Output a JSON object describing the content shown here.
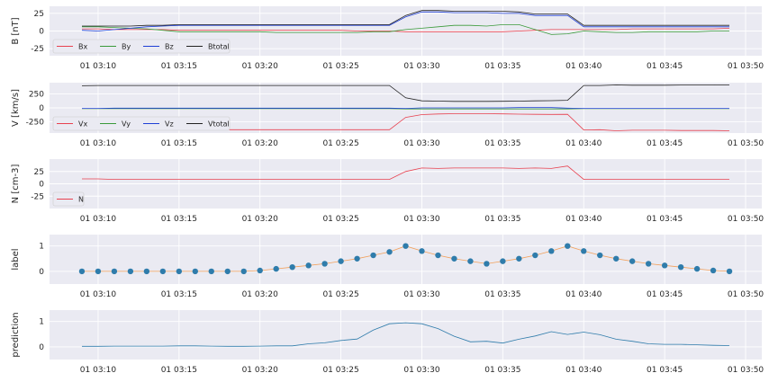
{
  "chart_data": [
    {
      "type": "line",
      "ylabel": "B [nT]",
      "ylim": [
        -35,
        35
      ],
      "yticks": [
        -25,
        0,
        25
      ],
      "grid": true,
      "legend_placement": "lower-left",
      "x": [
        "03:09",
        "03:10",
        "03:11",
        "03:12",
        "03:13",
        "03:14",
        "03:15",
        "03:16",
        "03:17",
        "03:18",
        "03:19",
        "03:20",
        "03:21",
        "03:22",
        "03:23",
        "03:24",
        "03:25",
        "03:26",
        "03:27",
        "03:28",
        "03:29",
        "03:30",
        "03:31",
        "03:32",
        "03:33",
        "03:34",
        "03:35",
        "03:36",
        "03:37",
        "03:38",
        "03:39",
        "03:40",
        "03:41",
        "03:42",
        "03:43",
        "03:44",
        "03:45",
        "03:46",
        "03:47",
        "03:48",
        "03:49"
      ],
      "series": [
        {
          "name": "Bx",
          "color": "#e8414f",
          "values": [
            3,
            3,
            2,
            2,
            2,
            2,
            1,
            1,
            1,
            1,
            1,
            1,
            1,
            1,
            1,
            1,
            1,
            0,
            0,
            0,
            -1,
            -1,
            -1,
            -1,
            -1,
            -1,
            -1,
            0,
            1,
            2,
            2,
            2,
            2,
            2,
            3,
            3,
            3,
            3,
            3,
            3,
            4
          ]
        },
        {
          "name": "By",
          "color": "#3a9a3a",
          "values": [
            6,
            6,
            5,
            4,
            3,
            1,
            -1,
            -1,
            -1,
            -1,
            -1,
            -1,
            -2,
            -2,
            -2,
            -2,
            -2,
            -2,
            -1,
            -1,
            2,
            4,
            6,
            8,
            8,
            7,
            9,
            9,
            2,
            -5,
            -4,
            0,
            -1,
            -2,
            -2,
            -1,
            -1,
            -1,
            -1,
            0,
            0
          ]
        },
        {
          "name": "Bz",
          "color": "#1f3fd6",
          "values": [
            1,
            0,
            2,
            4,
            6,
            7,
            8,
            8,
            8,
            8,
            8,
            8,
            8,
            8,
            8,
            8,
            8,
            8,
            8,
            8,
            20,
            27,
            27,
            26,
            26,
            26,
            25,
            25,
            22,
            22,
            22,
            6,
            6,
            6,
            6,
            6,
            6,
            6,
            6,
            6,
            6
          ]
        },
        {
          "name": "Btotal",
          "color": "#222222",
          "values": [
            7,
            7,
            7,
            7,
            8,
            8,
            9,
            9,
            9,
            9,
            9,
            9,
            9,
            9,
            9,
            9,
            9,
            9,
            9,
            9,
            22,
            29,
            29,
            28,
            28,
            28,
            28,
            27,
            24,
            24,
            24,
            8,
            8,
            8,
            8,
            8,
            8,
            8,
            8,
            8,
            8
          ]
        }
      ]
    },
    {
      "type": "line",
      "ylabel": "V [km/s]",
      "ylim": [
        -450,
        450
      ],
      "yticks": [
        -250,
        0,
        250
      ],
      "grid": true,
      "legend_placement": "lower-left",
      "x": [
        "03:09",
        "03:10",
        "03:11",
        "03:12",
        "03:13",
        "03:14",
        "03:15",
        "03:16",
        "03:17",
        "03:18",
        "03:19",
        "03:20",
        "03:21",
        "03:22",
        "03:23",
        "03:24",
        "03:25",
        "03:26",
        "03:27",
        "03:28",
        "03:29",
        "03:30",
        "03:31",
        "03:32",
        "03:33",
        "03:34",
        "03:35",
        "03:36",
        "03:37",
        "03:38",
        "03:39",
        "03:40",
        "03:41",
        "03:42",
        "03:43",
        "03:44",
        "03:45",
        "03:46",
        "03:47",
        "03:48",
        "03:49"
      ],
      "series": [
        {
          "name": "Vx",
          "color": "#e8414f",
          "values": [
            -395,
            -390,
            -390,
            -390,
            -390,
            -390,
            -390,
            -390,
            -390,
            -390,
            -390,
            -390,
            -390,
            -390,
            -390,
            -390,
            -390,
            -390,
            -390,
            -390,
            -170,
            -120,
            -110,
            -105,
            -105,
            -105,
            -108,
            -112,
            -115,
            -118,
            -115,
            -395,
            -390,
            -410,
            -400,
            -400,
            -400,
            -405,
            -405,
            -405,
            -410
          ]
        },
        {
          "name": "Vy",
          "color": "#3a9a3a",
          "values": [
            -15,
            -15,
            -15,
            -15,
            -15,
            -15,
            -15,
            -15,
            -15,
            -15,
            -15,
            -15,
            -15,
            -15,
            -15,
            -15,
            -15,
            -15,
            -15,
            -15,
            -20,
            -20,
            -20,
            -20,
            -20,
            -20,
            -20,
            -20,
            -20,
            -20,
            -20,
            -15,
            -15,
            -15,
            -15,
            -15,
            -15,
            -15,
            -15,
            -15,
            -15
          ]
        },
        {
          "name": "Vz",
          "color": "#1f3fd6",
          "values": [
            -10,
            -10,
            -5,
            -5,
            -5,
            -5,
            -5,
            -5,
            -5,
            -5,
            -5,
            -5,
            -5,
            -5,
            -5,
            -5,
            -5,
            -5,
            -5,
            -5,
            -10,
            0,
            0,
            0,
            0,
            0,
            0,
            5,
            5,
            5,
            -5,
            -10,
            -10,
            -10,
            -10,
            -10,
            -10,
            -10,
            -10,
            -10,
            -10
          ]
        },
        {
          "name": "Vtotal",
          "color": "#222222",
          "values": [
            395,
            400,
            400,
            400,
            400,
            400,
            400,
            400,
            400,
            400,
            400,
            400,
            400,
            400,
            400,
            400,
            400,
            400,
            400,
            400,
            180,
            125,
            120,
            115,
            115,
            115,
            118,
            120,
            125,
            128,
            135,
            400,
            400,
            410,
            405,
            405,
            405,
            408,
            408,
            408,
            410
          ]
        }
      ]
    },
    {
      "type": "line",
      "ylabel": "N [cm-3]",
      "ylim": [
        -50,
        50
      ],
      "yticks": [
        -25,
        0,
        25
      ],
      "grid": true,
      "legend_placement": "lower-left",
      "x": [
        "03:09",
        "03:10",
        "03:11",
        "03:12",
        "03:13",
        "03:14",
        "03:15",
        "03:16",
        "03:17",
        "03:18",
        "03:19",
        "03:20",
        "03:21",
        "03:22",
        "03:23",
        "03:24",
        "03:25",
        "03:26",
        "03:27",
        "03:28",
        "03:29",
        "03:30",
        "03:31",
        "03:32",
        "03:33",
        "03:34",
        "03:35",
        "03:36",
        "03:37",
        "03:38",
        "03:39",
        "03:40",
        "03:41",
        "03:42",
        "03:43",
        "03:44",
        "03:45",
        "03:46",
        "03:47",
        "03:48",
        "03:49"
      ],
      "series": [
        {
          "name": "N",
          "color": "#e8414f",
          "values": [
            10,
            10,
            9,
            9,
            9,
            9,
            9,
            9,
            9,
            9,
            9,
            9,
            9,
            9,
            9,
            9,
            9,
            9,
            9,
            9,
            25,
            32,
            31,
            32,
            32,
            32,
            32,
            31,
            32,
            31,
            36,
            9,
            9,
            9,
            9,
            9,
            9,
            9,
            9,
            9,
            9
          ]
        }
      ]
    },
    {
      "type": "line",
      "ylabel": "label",
      "ylim": [
        -0.5,
        1.45
      ],
      "yticks": [
        0,
        1
      ],
      "grid": true,
      "x": [
        "03:09",
        "03:10",
        "03:11",
        "03:12",
        "03:13",
        "03:14",
        "03:15",
        "03:16",
        "03:17",
        "03:18",
        "03:19",
        "03:20",
        "03:21",
        "03:22",
        "03:23",
        "03:24",
        "03:25",
        "03:26",
        "03:27",
        "03:28",
        "03:29",
        "03:30",
        "03:31",
        "03:32",
        "03:33",
        "03:34",
        "03:35",
        "03:36",
        "03:37",
        "03:38",
        "03:39",
        "03:40",
        "03:41",
        "03:42",
        "03:43",
        "03:44",
        "03:45",
        "03:46",
        "03:47",
        "03:48",
        "03:49"
      ],
      "series": [
        {
          "color": "#2f7cab",
          "line_color": "#f2a05b",
          "values": [
            0,
            0,
            0,
            0,
            0,
            0,
            0,
            0,
            0,
            0,
            0,
            0.033,
            0.1,
            0.167,
            0.233,
            0.3,
            0.4,
            0.5,
            0.633,
            0.767,
            1,
            0.8,
            0.633,
            0.5,
            0.4,
            0.3,
            0.4,
            0.5,
            0.633,
            0.8,
            1,
            0.8,
            0.633,
            0.5,
            0.4,
            0.3,
            0.233,
            0.167,
            0.1,
            0.033,
            0
          ]
        }
      ]
    },
    {
      "type": "line",
      "ylabel": "prediction",
      "ylim": [
        -0.5,
        1.45
      ],
      "yticks": [
        0,
        1
      ],
      "grid": true,
      "x": [
        "03:09",
        "03:10",
        "03:11",
        "03:12",
        "03:13",
        "03:14",
        "03:15",
        "03:16",
        "03:17",
        "03:18",
        "03:19",
        "03:20",
        "03:21",
        "03:22",
        "03:23",
        "03:24",
        "03:25",
        "03:26",
        "03:27",
        "03:28",
        "03:29",
        "03:30",
        "03:31",
        "03:32",
        "03:33",
        "03:34",
        "03:35",
        "03:36",
        "03:37",
        "03:38",
        "03:39",
        "03:40",
        "03:41",
        "03:42",
        "03:43",
        "03:44",
        "03:45",
        "03:46",
        "03:47",
        "03:48",
        "03:49"
      ],
      "series": [
        {
          "color": "#2f7cab",
          "values": [
            0.02,
            0.02,
            0.03,
            0.03,
            0.03,
            0.03,
            0.04,
            0.04,
            0.03,
            0.02,
            0.02,
            0.03,
            0.04,
            0.04,
            0.12,
            0.16,
            0.25,
            0.31,
            0.66,
            0.91,
            0.95,
            0.91,
            0.72,
            0.42,
            0.2,
            0.22,
            0.15,
            0.3,
            0.43,
            0.6,
            0.49,
            0.58,
            0.48,
            0.3,
            0.22,
            0.12,
            0.1,
            0.1,
            0.08,
            0.06,
            0.05
          ]
        }
      ]
    }
  ],
  "x_axis": {
    "tick_labels": [
      "01 03:10",
      "01 03:15",
      "01 03:20",
      "01 03:25",
      "01 03:30",
      "01 03:35",
      "01 03:40",
      "01 03:45",
      "01 03:50"
    ],
    "tick_minutes": [
      10,
      15,
      20,
      25,
      30,
      35,
      40,
      45,
      50
    ],
    "range_minutes": [
      7,
      51
    ]
  },
  "colors": {
    "axes_background": "#eaeaf2",
    "grid": "#ffffff"
  }
}
